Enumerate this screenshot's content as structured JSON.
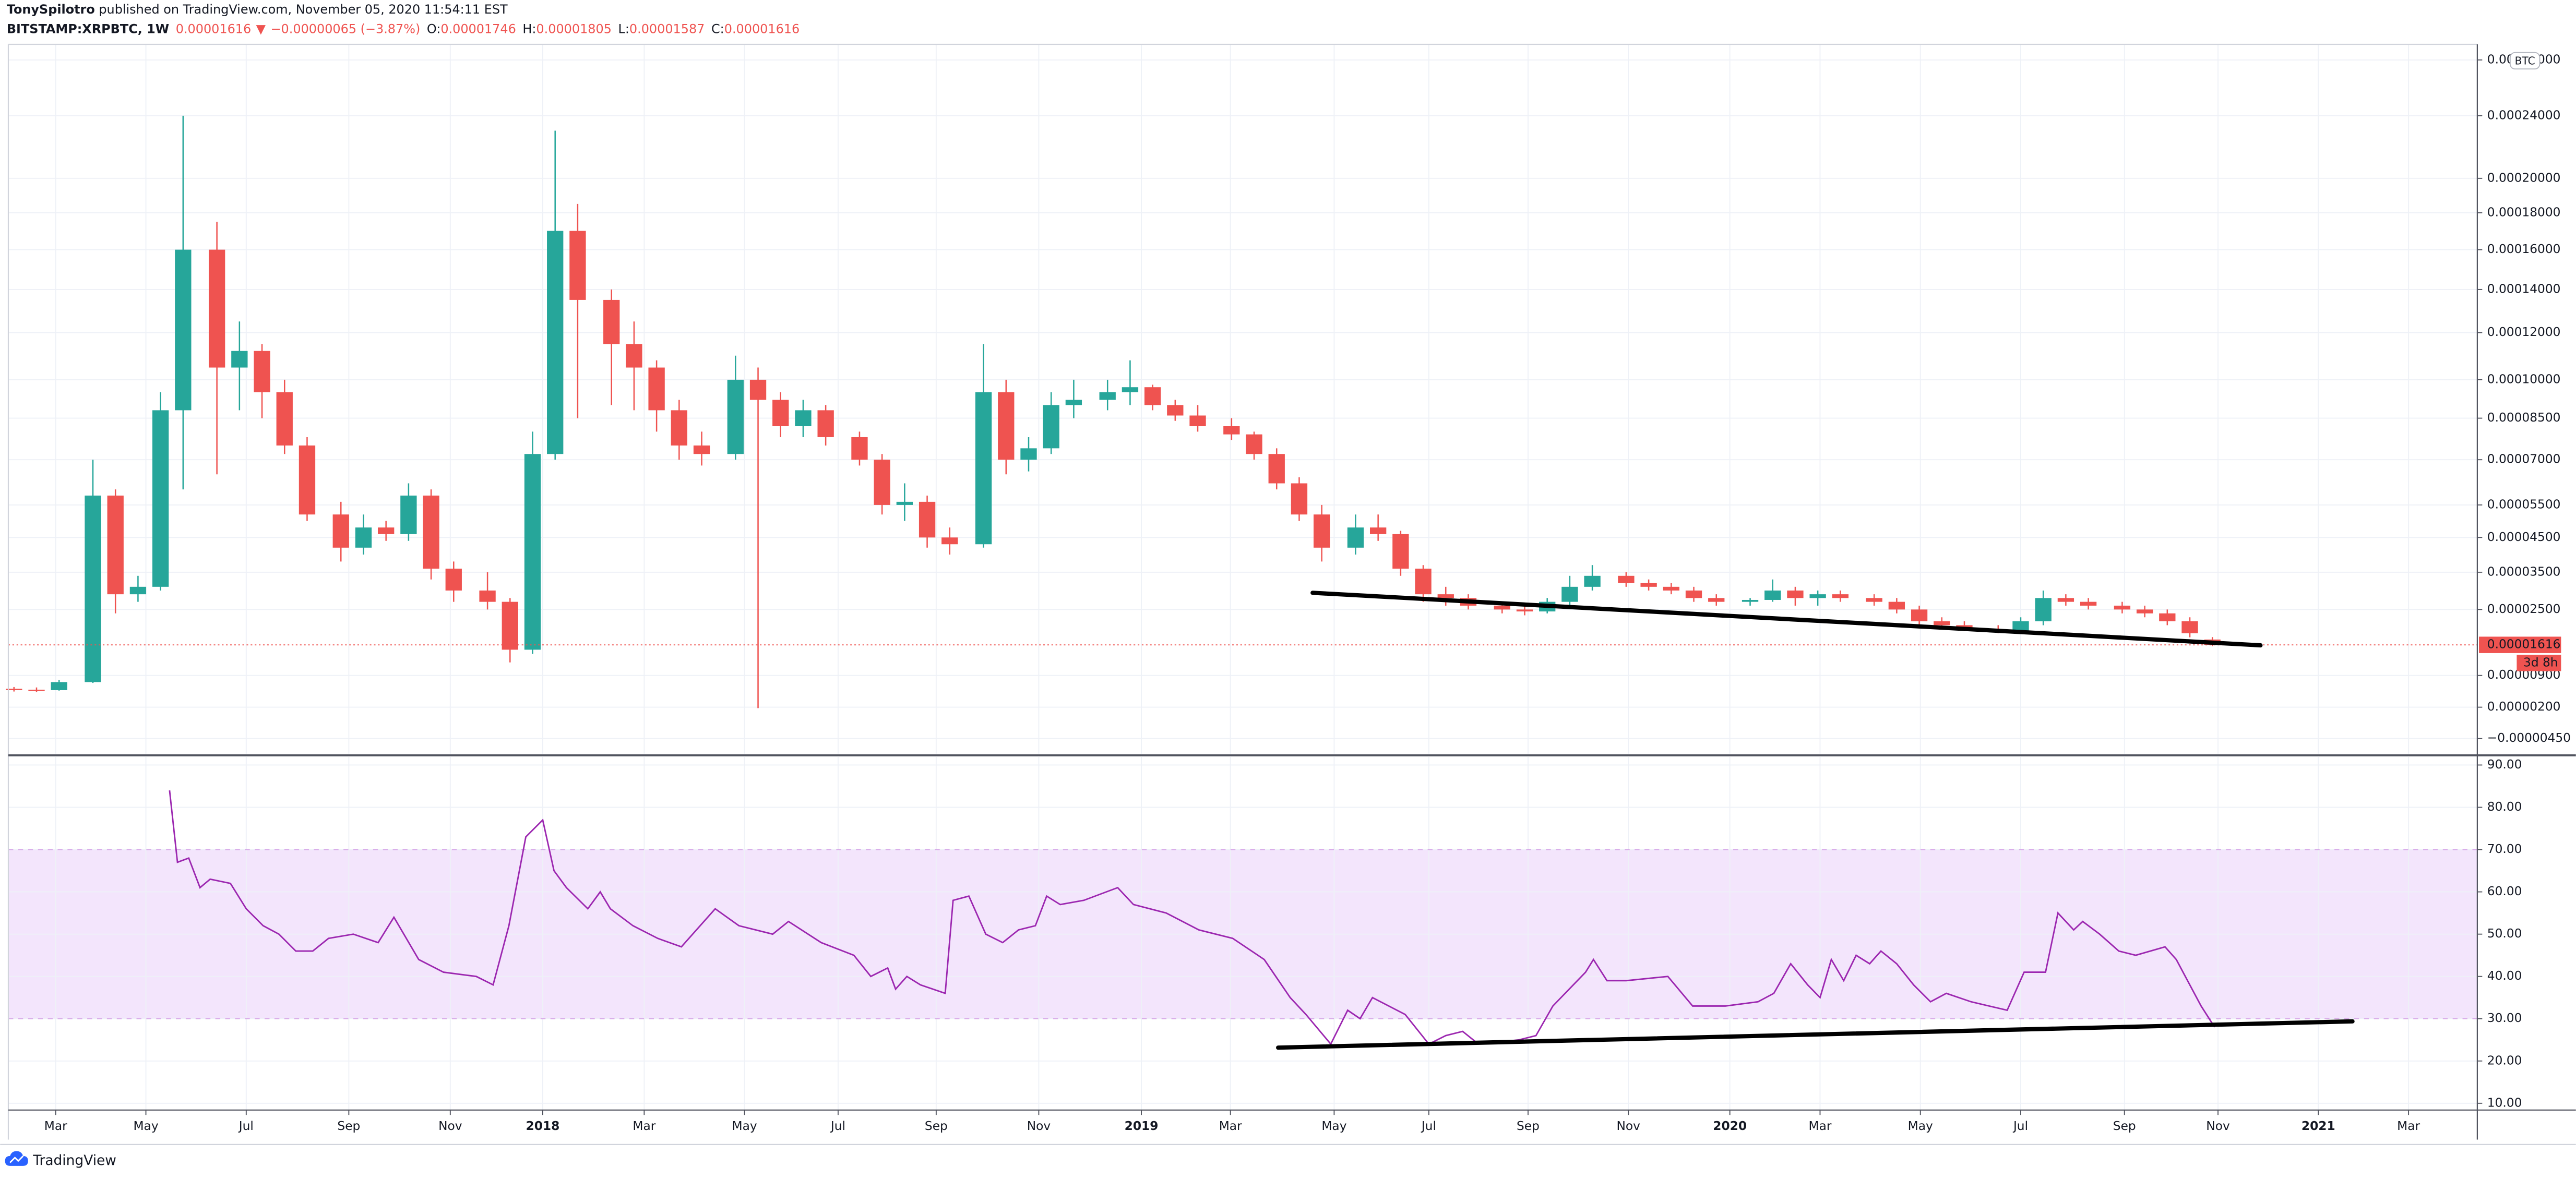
{
  "header": {
    "author": "TonySpilotro",
    "published": " published on TradingView.com, November 05, 2020 11:54:11 EST",
    "symbol": "BITSTAMP:XRPBTC, 1W",
    "price": "0.00001616",
    "arrow": "▼",
    "change": "−0.00000065 (−3.87%)",
    "ohlc": [
      {
        "key": "O:",
        "value": "0.00001746"
      },
      {
        "key": "H:",
        "value": "0.00001805"
      },
      {
        "key": "L:",
        "value": "0.00001587"
      },
      {
        "key": "C:",
        "value": "0.00001616"
      }
    ]
  },
  "chart_data": [
    {
      "type": "candlestick",
      "unit": "BTC",
      "up_color": "#26a69a",
      "down_color": "#ef5350",
      "grid": true,
      "xlim": [
        -0.5,
        218.5
      ],
      "ylim": [
        -7.5e-06,
        0.000292
      ],
      "yticks": [
        {
          "value": 0.00028,
          "label": "0.00028000"
        },
        {
          "value": 0.00024,
          "label": "0.00024000"
        },
        {
          "value": 0.0002,
          "label": "0.00020000"
        },
        {
          "value": 0.00018,
          "label": "0.00018000"
        },
        {
          "value": 0.00016,
          "label": "0.00016000"
        },
        {
          "value": 0.00014,
          "label": "0.00014000"
        },
        {
          "value": 0.00012,
          "label": "0.00012000"
        },
        {
          "value": 0.0001,
          "label": "0.00010000"
        },
        {
          "value": 8.5e-05,
          "label": "0.00008500"
        },
        {
          "value": 7e-05,
          "label": "0.00007000"
        },
        {
          "value": 5.5e-05,
          "label": "0.00005500"
        },
        {
          "value": 4.5e-05,
          "label": "0.00004500"
        },
        {
          "value": 3.5e-05,
          "label": "0.00003500"
        },
        {
          "value": 2.5e-05,
          "label": "0.00002500"
        },
        {
          "value": 9e-06,
          "label": "0.00000900"
        },
        {
          "value": 2e-06,
          "label": "0.00000200"
        },
        {
          "value": -4.5e-06,
          "label": "−0.00000450"
        }
      ],
      "last_price": {
        "value": 1.616e-05,
        "label": "0.00001616"
      },
      "countdown": "3d 8h",
      "x": [
        0,
        2,
        4,
        7,
        9,
        11,
        13,
        15,
        18,
        20,
        22,
        24,
        26,
        29,
        31,
        33,
        35,
        37,
        39,
        42,
        44,
        46,
        48,
        50,
        53,
        55,
        57,
        59,
        61,
        64,
        66,
        68,
        70,
        72,
        75,
        77,
        79,
        81,
        83,
        86,
        88,
        90,
        92,
        94,
        97,
        99,
        101,
        103,
        105,
        108,
        110,
        112,
        114,
        116,
        119,
        121,
        123,
        125,
        127,
        129,
        132,
        134,
        136,
        138,
        140,
        143,
        145,
        147,
        149,
        151,
        154,
        156,
        158,
        160,
        162,
        165,
        167,
        169,
        171,
        173,
        176,
        178,
        180,
        182,
        184,
        187,
        189,
        191,
        193,
        195
      ],
      "open": [
        6e-06,
        5.8e-06,
        5.7e-06,
        7.5e-06,
        5.8e-05,
        2.9e-05,
        3.1e-05,
        8.8e-05,
        0.00016,
        0.000105,
        0.000112,
        9.5e-05,
        7.5e-05,
        5.2e-05,
        4.2e-05,
        4.8e-05,
        4.6e-05,
        5.8e-05,
        3.6e-05,
        3e-05,
        2.7e-05,
        1.5e-05,
        7.2e-05,
        0.00017,
        0.000135,
        0.000115,
        0.000105,
        8.8e-05,
        7.5e-05,
        7.2e-05,
        0.0001,
        9.2e-05,
        8.2e-05,
        8.8e-05,
        7.8e-05,
        7e-05,
        5.5e-05,
        5.6e-05,
        4.5e-05,
        4.3e-05,
        9.5e-05,
        7e-05,
        7.4e-05,
        9e-05,
        9.2e-05,
        9.5e-05,
        9.7e-05,
        9e-05,
        8.6e-05,
        8.2e-05,
        7.9e-05,
        7.2e-05,
        6.2e-05,
        5.2e-05,
        4.2e-05,
        4.8e-05,
        4.6e-05,
        3.6e-05,
        2.9e-05,
        2.8e-05,
        2.6e-05,
        2.5e-05,
        2.45e-05,
        2.7e-05,
        3.1e-05,
        3.4e-05,
        3.2e-05,
        3.1e-05,
        3e-05,
        2.8e-05,
        2.7e-05,
        2.75e-05,
        3e-05,
        2.8e-05,
        2.9e-05,
        2.8e-05,
        2.7e-05,
        2.5e-05,
        2.2e-05,
        2.1e-05,
        2e-05,
        1.95e-05,
        2.2e-05,
        2.8e-05,
        2.7e-05,
        2.6e-05,
        2.5e-05,
        2.4e-05,
        2.2e-05,
        1.746e-05
      ],
      "high": [
        6.4e-06,
        6.3e-06,
        8e-06,
        7e-05,
        6e-05,
        3.4e-05,
        9.5e-05,
        0.00024,
        0.000175,
        0.000125,
        0.000115,
        0.0001,
        7.8e-05,
        5.6e-05,
        5.2e-05,
        5e-05,
        6.2e-05,
        6e-05,
        3.8e-05,
        3.5e-05,
        2.8e-05,
        8e-05,
        0.00023,
        0.000185,
        0.00014,
        0.000125,
        0.000108,
        9.2e-05,
        8e-05,
        0.00011,
        0.000105,
        9.5e-05,
        9.2e-05,
        9e-05,
        8e-05,
        7.2e-05,
        6.2e-05,
        5.8e-05,
        4.8e-05,
        0.000115,
        0.0001,
        7.8e-05,
        9.5e-05,
        0.0001,
        0.0001,
        0.000108,
        9.8e-05,
        9.2e-05,
        9e-05,
        8.5e-05,
        8e-05,
        7.4e-05,
        6.4e-05,
        5.5e-05,
        5.2e-05,
        5.2e-05,
        4.7e-05,
        3.7e-05,
        3.1e-05,
        2.9e-05,
        2.7e-05,
        2.6e-05,
        2.8e-05,
        3.4e-05,
        3.7e-05,
        3.5e-05,
        3.3e-05,
        3.2e-05,
        3.1e-05,
        2.9e-05,
        2.8e-05,
        3.3e-05,
        3.1e-05,
        3e-05,
        3e-05,
        2.9e-05,
        2.8e-05,
        2.6e-05,
        2.3e-05,
        2.2e-05,
        2.1e-05,
        2.3e-05,
        3e-05,
        2.9e-05,
        2.8e-05,
        2.7e-05,
        2.6e-05,
        2.5e-05,
        2.3e-05,
        1.805e-05
      ],
      "low": [
        5.4e-06,
        5.3e-06,
        5.6e-06,
        7.3e-06,
        2.4e-05,
        2.7e-05,
        3e-05,
        6e-05,
        6.5e-05,
        8.8e-05,
        8.5e-05,
        7.2e-05,
        5e-05,
        3.8e-05,
        4e-05,
        4.4e-05,
        4.4e-05,
        3.3e-05,
        2.7e-05,
        2.5e-05,
        1.2e-05,
        1.4e-05,
        7e-05,
        8.5e-05,
        9e-05,
        8.8e-05,
        8e-05,
        7e-05,
        6.8e-05,
        7e-05,
        1.8e-06,
        7.8e-05,
        7.8e-05,
        7.5e-05,
        6.8e-05,
        5.2e-05,
        5e-05,
        4.2e-05,
        4e-05,
        4.2e-05,
        6.5e-05,
        6.6e-05,
        7.2e-05,
        8.5e-05,
        8.8e-05,
        9e-05,
        8.8e-05,
        8.4e-05,
        8e-05,
        7.7e-05,
        7e-05,
        6e-05,
        5e-05,
        3.8e-05,
        4e-05,
        4.4e-05,
        3.4e-05,
        2.7e-05,
        2.6e-05,
        2.5e-05,
        2.4e-05,
        2.35e-05,
        2.4e-05,
        2.6e-05,
        3e-05,
        3.1e-05,
        3e-05,
        2.9e-05,
        2.7e-05,
        2.6e-05,
        2.6e-05,
        2.7e-05,
        2.6e-05,
        2.6e-05,
        2.7e-05,
        2.6e-05,
        2.4e-05,
        2.1e-05,
        2e-05,
        1.95e-05,
        1.9e-05,
        1.9e-05,
        2.1e-05,
        2.6e-05,
        2.5e-05,
        2.4e-05,
        2.3e-05,
        2.1e-05,
        1.8e-05,
        1.587e-05
      ],
      "close": [
        5.8e-06,
        5.7e-06,
        7.5e-06,
        5.8e-05,
        2.9e-05,
        3.1e-05,
        8.8e-05,
        0.00016,
        0.000105,
        0.000112,
        9.5e-05,
        7.5e-05,
        5.2e-05,
        4.2e-05,
        4.8e-05,
        4.6e-05,
        5.8e-05,
        3.6e-05,
        3e-05,
        2.7e-05,
        1.5e-05,
        7.2e-05,
        0.00017,
        0.000135,
        0.000115,
        0.000105,
        8.8e-05,
        7.5e-05,
        7.2e-05,
        0.0001,
        9.2e-05,
        8.2e-05,
        8.8e-05,
        7.8e-05,
        7e-05,
        5.5e-05,
        5.6e-05,
        4.5e-05,
        4.3e-05,
        9.5e-05,
        7e-05,
        7.4e-05,
        9e-05,
        9.2e-05,
        9.5e-05,
        9.7e-05,
        9e-05,
        8.6e-05,
        8.2e-05,
        7.9e-05,
        7.2e-05,
        6.2e-05,
        5.2e-05,
        4.2e-05,
        4.8e-05,
        4.6e-05,
        3.6e-05,
        2.9e-05,
        2.8e-05,
        2.6e-05,
        2.5e-05,
        2.45e-05,
        2.7e-05,
        3.1e-05,
        3.4e-05,
        3.2e-05,
        3.1e-05,
        3e-05,
        2.8e-05,
        2.7e-05,
        2.75e-05,
        3e-05,
        2.8e-05,
        2.9e-05,
        2.8e-05,
        2.7e-05,
        2.5e-05,
        2.2e-05,
        2.1e-05,
        2e-05,
        1.95e-05,
        2.2e-05,
        2.8e-05,
        2.7e-05,
        2.6e-05,
        2.5e-05,
        2.4e-05,
        2.2e-05,
        1.9e-05,
        1.616e-05
      ]
    },
    {
      "type": "line",
      "color": "#9c27b0",
      "band_color": "#f3e5fc",
      "band": [
        30,
        70
      ],
      "grid": true,
      "xlim": [
        -0.5,
        218.5
      ],
      "xticks": [
        {
          "value": 3.7,
          "label": "Mar"
        },
        {
          "value": 11.7,
          "label": "May"
        },
        {
          "value": 20.6,
          "label": "Jul"
        },
        {
          "value": 29.7,
          "label": "Sep"
        },
        {
          "value": 38.7,
          "label": "Nov"
        },
        {
          "value": 46.9,
          "label": "2018"
        },
        {
          "value": 55.9,
          "label": "Mar"
        },
        {
          "value": 64.8,
          "label": "May"
        },
        {
          "value": 73.1,
          "label": "Jul"
        },
        {
          "value": 81.8,
          "label": "Sep"
        },
        {
          "value": 90.9,
          "label": "Nov"
        },
        {
          "value": 100.0,
          "label": "2019"
        },
        {
          "value": 107.9,
          "label": "Mar"
        },
        {
          "value": 117.1,
          "label": "May"
        },
        {
          "value": 125.5,
          "label": "Jul"
        },
        {
          "value": 134.3,
          "label": "Sep"
        },
        {
          "value": 143.2,
          "label": "Nov"
        },
        {
          "value": 152.2,
          "label": "2020"
        },
        {
          "value": 160.2,
          "label": "Mar"
        },
        {
          "value": 169.1,
          "label": "May"
        },
        {
          "value": 178.0,
          "label": "Jul"
        },
        {
          "value": 187.2,
          "label": "Sep"
        },
        {
          "value": 195.5,
          "label": "Nov"
        },
        {
          "value": 204.4,
          "label": "2021"
        },
        {
          "value": 212.4,
          "label": "Mar"
        }
      ],
      "ylim": [
        8.4,
        91.9
      ],
      "yticks": [
        {
          "value": 90,
          "label": "90.00"
        },
        {
          "value": 80,
          "label": "80.00"
        },
        {
          "value": 70,
          "label": "70.00"
        },
        {
          "value": 60,
          "label": "60.00"
        },
        {
          "value": 50,
          "label": "50.00"
        },
        {
          "value": 40,
          "label": "40.00"
        },
        {
          "value": 30,
          "label": "30.00"
        },
        {
          "value": 20,
          "label": "20.00"
        },
        {
          "value": 10,
          "label": "10.00"
        }
      ],
      "x": [
        13.8,
        14.5,
        15.5,
        16.5,
        17.4,
        19.2,
        20.6,
        22.1,
        23.5,
        25.0,
        26.5,
        27.9,
        30.1,
        32.3,
        33.7,
        35.9,
        38.1,
        41.0,
        42.5,
        43.9,
        45.4,
        46.9,
        47.9,
        49.0,
        50.9,
        52.0,
        52.9,
        54.9,
        57.1,
        59.2,
        62.2,
        64.3,
        67.3,
        68.7,
        71.6,
        74.5,
        76.0,
        77.5,
        78.2,
        79.2,
        80.4,
        82.6,
        83.3,
        84.7,
        86.2,
        87.7,
        89.1,
        90.6,
        91.6,
        92.8,
        94.9,
        97.9,
        99.3,
        102.2,
        105.1,
        108.1,
        110.9,
        113.2,
        114.6,
        116.8,
        118.3,
        119.4,
        120.5,
        123.4,
        125.5,
        127.0,
        128.5,
        129.9,
        133.5,
        135.0,
        136.5,
        139.4,
        140.1,
        141.3,
        143.0,
        146.7,
        148.9,
        151.8,
        154.7,
        156.1,
        157.6,
        159.1,
        160.2,
        161.2,
        162.3,
        163.4,
        164.6,
        165.6,
        167.0,
        168.5,
        170.0,
        171.4,
        173.6,
        176.8,
        178.3,
        180.2,
        181.3,
        182.7,
        183.5,
        185.0,
        186.7,
        188.2,
        190.8,
        191.8,
        194.0,
        195.2
      ],
      "values": [
        84,
        67,
        68,
        61,
        63,
        62,
        56,
        52,
        50,
        46,
        46,
        49,
        50,
        48,
        54,
        44,
        41,
        40,
        38,
        52,
        73,
        77,
        65,
        61,
        56,
        60,
        56,
        52,
        49,
        47,
        56,
        52,
        50,
        53,
        48,
        45,
        40,
        42,
        37,
        40,
        38,
        36,
        58,
        59,
        50,
        48,
        51,
        52,
        59,
        57,
        58,
        61,
        57,
        55,
        51,
        49,
        44,
        35,
        31,
        24,
        32,
        30,
        35,
        31,
        24,
        26,
        27,
        24,
        25,
        26,
        33,
        41,
        44,
        39,
        39,
        40,
        33,
        33,
        34,
        36,
        43,
        38,
        35,
        44,
        39,
        45,
        43,
        46,
        43,
        38,
        34,
        36,
        34,
        32,
        41,
        41,
        55,
        51,
        53,
        50,
        46,
        45,
        47,
        44,
        33,
        28
      ]
    }
  ],
  "footer": {
    "brand": "TradingView"
  }
}
